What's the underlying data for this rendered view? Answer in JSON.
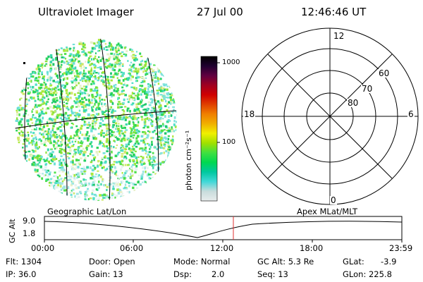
{
  "header": {
    "instrument": "Ultraviolet Imager",
    "date": "27 Jul 00",
    "time": "12:46:46 UT"
  },
  "colorbar": {
    "unit_label": "photon cm⁻²s⁻¹",
    "tick_1000": "1000",
    "tick_100": "100",
    "stops": [
      "#e8ecec",
      "#c8dcdc",
      "#40d8d8",
      "#00c8a0",
      "#00d850",
      "#40e040",
      "#a0e000",
      "#f0f000",
      "#f0b000",
      "#f08000",
      "#e04000",
      "#d00000",
      "#a00020",
      "#600040",
      "#200030",
      "#000000"
    ]
  },
  "polar_plot": {
    "mlt_12": "12",
    "mlt_18": "18",
    "mlt_6": "6",
    "mlt_0": "0",
    "lat_60": "60",
    "lat_70": "70",
    "lat_80": "80"
  },
  "image_panel": {
    "mode_left": "Geographic Lat/Lon",
    "mode_right": "Apex MLat/MLT"
  },
  "timeline": {
    "ylabel": "GC Alt",
    "y_max": "9.0",
    "y_min": "1.8",
    "ticks": [
      "00:00",
      "06:00",
      "12:00",
      "18:00",
      "23:59"
    ],
    "current_marker": "12:46:46"
  },
  "status": {
    "flt": "Flt: 1304",
    "ip": "IP: 36.0",
    "door": "Door: Open",
    "gain": "Gain: 13",
    "mode": "Mode: Normal",
    "dsp_label": "Dsp:",
    "dsp_value": "2.0",
    "gc_alt": "GC Alt: 5.3 Re",
    "seq": "Seq: 13",
    "glat_label": "GLat:",
    "glat_value": "-3.9",
    "glon": "GLon: 225.8"
  }
}
